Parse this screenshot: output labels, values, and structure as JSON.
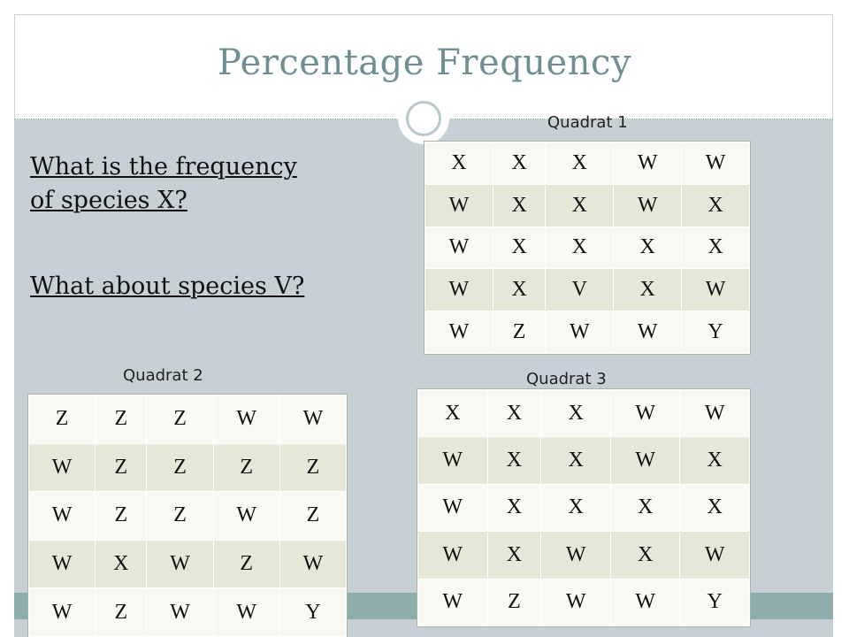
{
  "title": "Percentage Frequency",
  "questions": [
    "What is the frequency",
    "of species X?",
    "What about species V?"
  ],
  "quadrats": [
    {
      "label": "Quadrat 1",
      "rows": [
        [
          "X",
          "X",
          "X",
          "W",
          "W"
        ],
        [
          "W",
          "X",
          "X",
          "W",
          "X"
        ],
        [
          "W",
          "X",
          "X",
          "X",
          "X"
        ],
        [
          "W",
          "X",
          "V",
          "X",
          "W"
        ],
        [
          "W",
          "Z",
          "W",
          "W",
          "Y"
        ]
      ]
    },
    {
      "label": "Quadrat 2",
      "rows": [
        [
          "Z",
          "Z",
          "Z",
          "W",
          "W"
        ],
        [
          "W",
          "Z",
          "Z",
          "Z",
          "Z"
        ],
        [
          "W",
          "Z",
          "Z",
          "W",
          "Z"
        ],
        [
          "W",
          "X",
          "W",
          "Z",
          "W"
        ],
        [
          "W",
          "Z",
          "W",
          "W",
          "Y"
        ]
      ]
    },
    {
      "label": "Quadrat 3",
      "rows": [
        [
          "X",
          "X",
          "X",
          "W",
          "W"
        ],
        [
          "W",
          "X",
          "X",
          "W",
          "X"
        ],
        [
          "W",
          "X",
          "X",
          "X",
          "X"
        ],
        [
          "W",
          "X",
          "W",
          "X",
          "W"
        ],
        [
          "W",
          "Z",
          "W",
          "W",
          "Y"
        ]
      ]
    }
  ]
}
